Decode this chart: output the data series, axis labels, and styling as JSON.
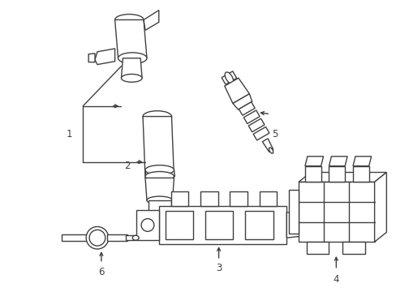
{
  "background_color": "#ffffff",
  "line_color": "#404040",
  "line_width": 1.0,
  "label_fontsize": 8.5,
  "figsize": [
    4.89,
    3.6
  ],
  "dpi": 100
}
